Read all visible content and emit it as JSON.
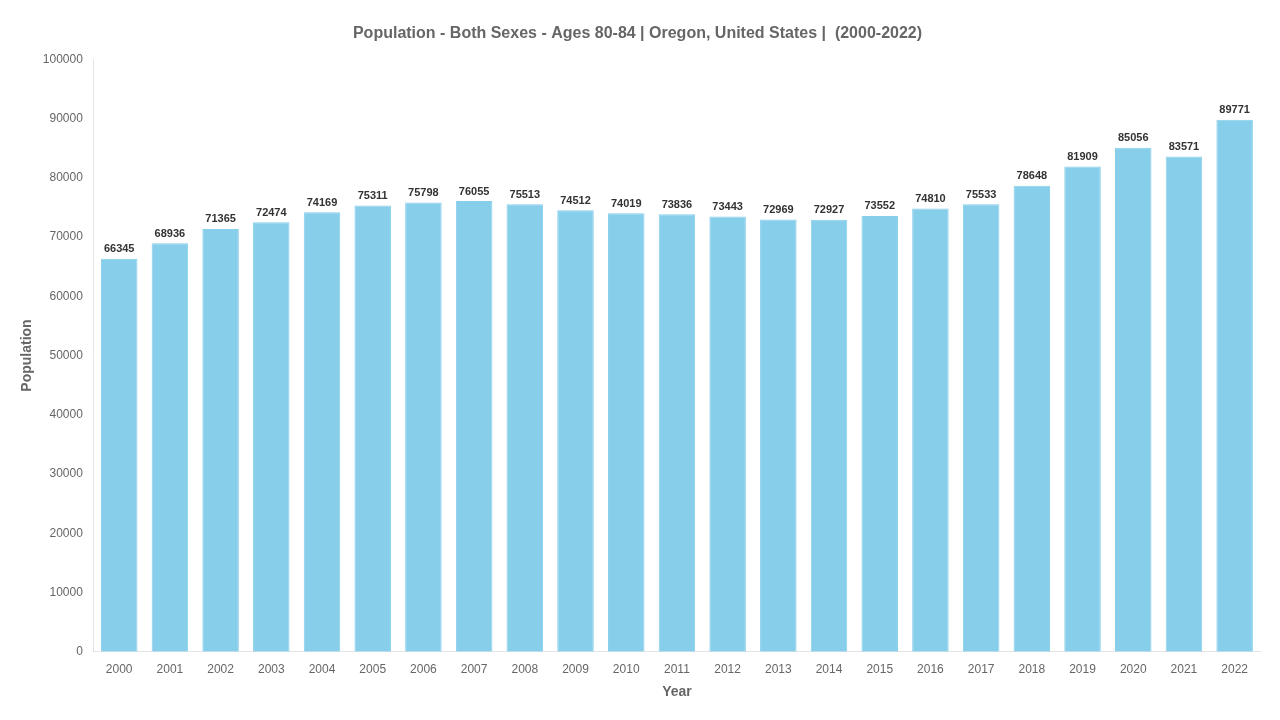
{
  "chart_data": {
    "type": "bar",
    "title": "Population - Both Sexes - Ages 80-84 | Oregon, United States |  (2000-2022)",
    "x_label": "Year",
    "y_label": "Population",
    "categories": [
      "2000",
      "2001",
      "2002",
      "2003",
      "2004",
      "2005",
      "2006",
      "2007",
      "2008",
      "2009",
      "2010",
      "2011",
      "2012",
      "2013",
      "2014",
      "2015",
      "2016",
      "2017",
      "2018",
      "2019",
      "2020",
      "2021",
      "2022"
    ],
    "values": [
      66345,
      68936,
      71365,
      72474,
      74169,
      75311,
      75798,
      76055,
      75513,
      74512,
      74019,
      73836,
      73443,
      72969,
      72927,
      73552,
      74810,
      75533,
      78648,
      81909,
      85056,
      83571,
      89771
    ],
    "color": "#87CEEB",
    "ylim": [
      0,
      100000
    ],
    "yticks": [
      0,
      10000,
      20000,
      30000,
      40000,
      50000,
      60000,
      70000,
      80000,
      90000,
      100000
    ],
    "grid": false,
    "data_labels": true
  }
}
